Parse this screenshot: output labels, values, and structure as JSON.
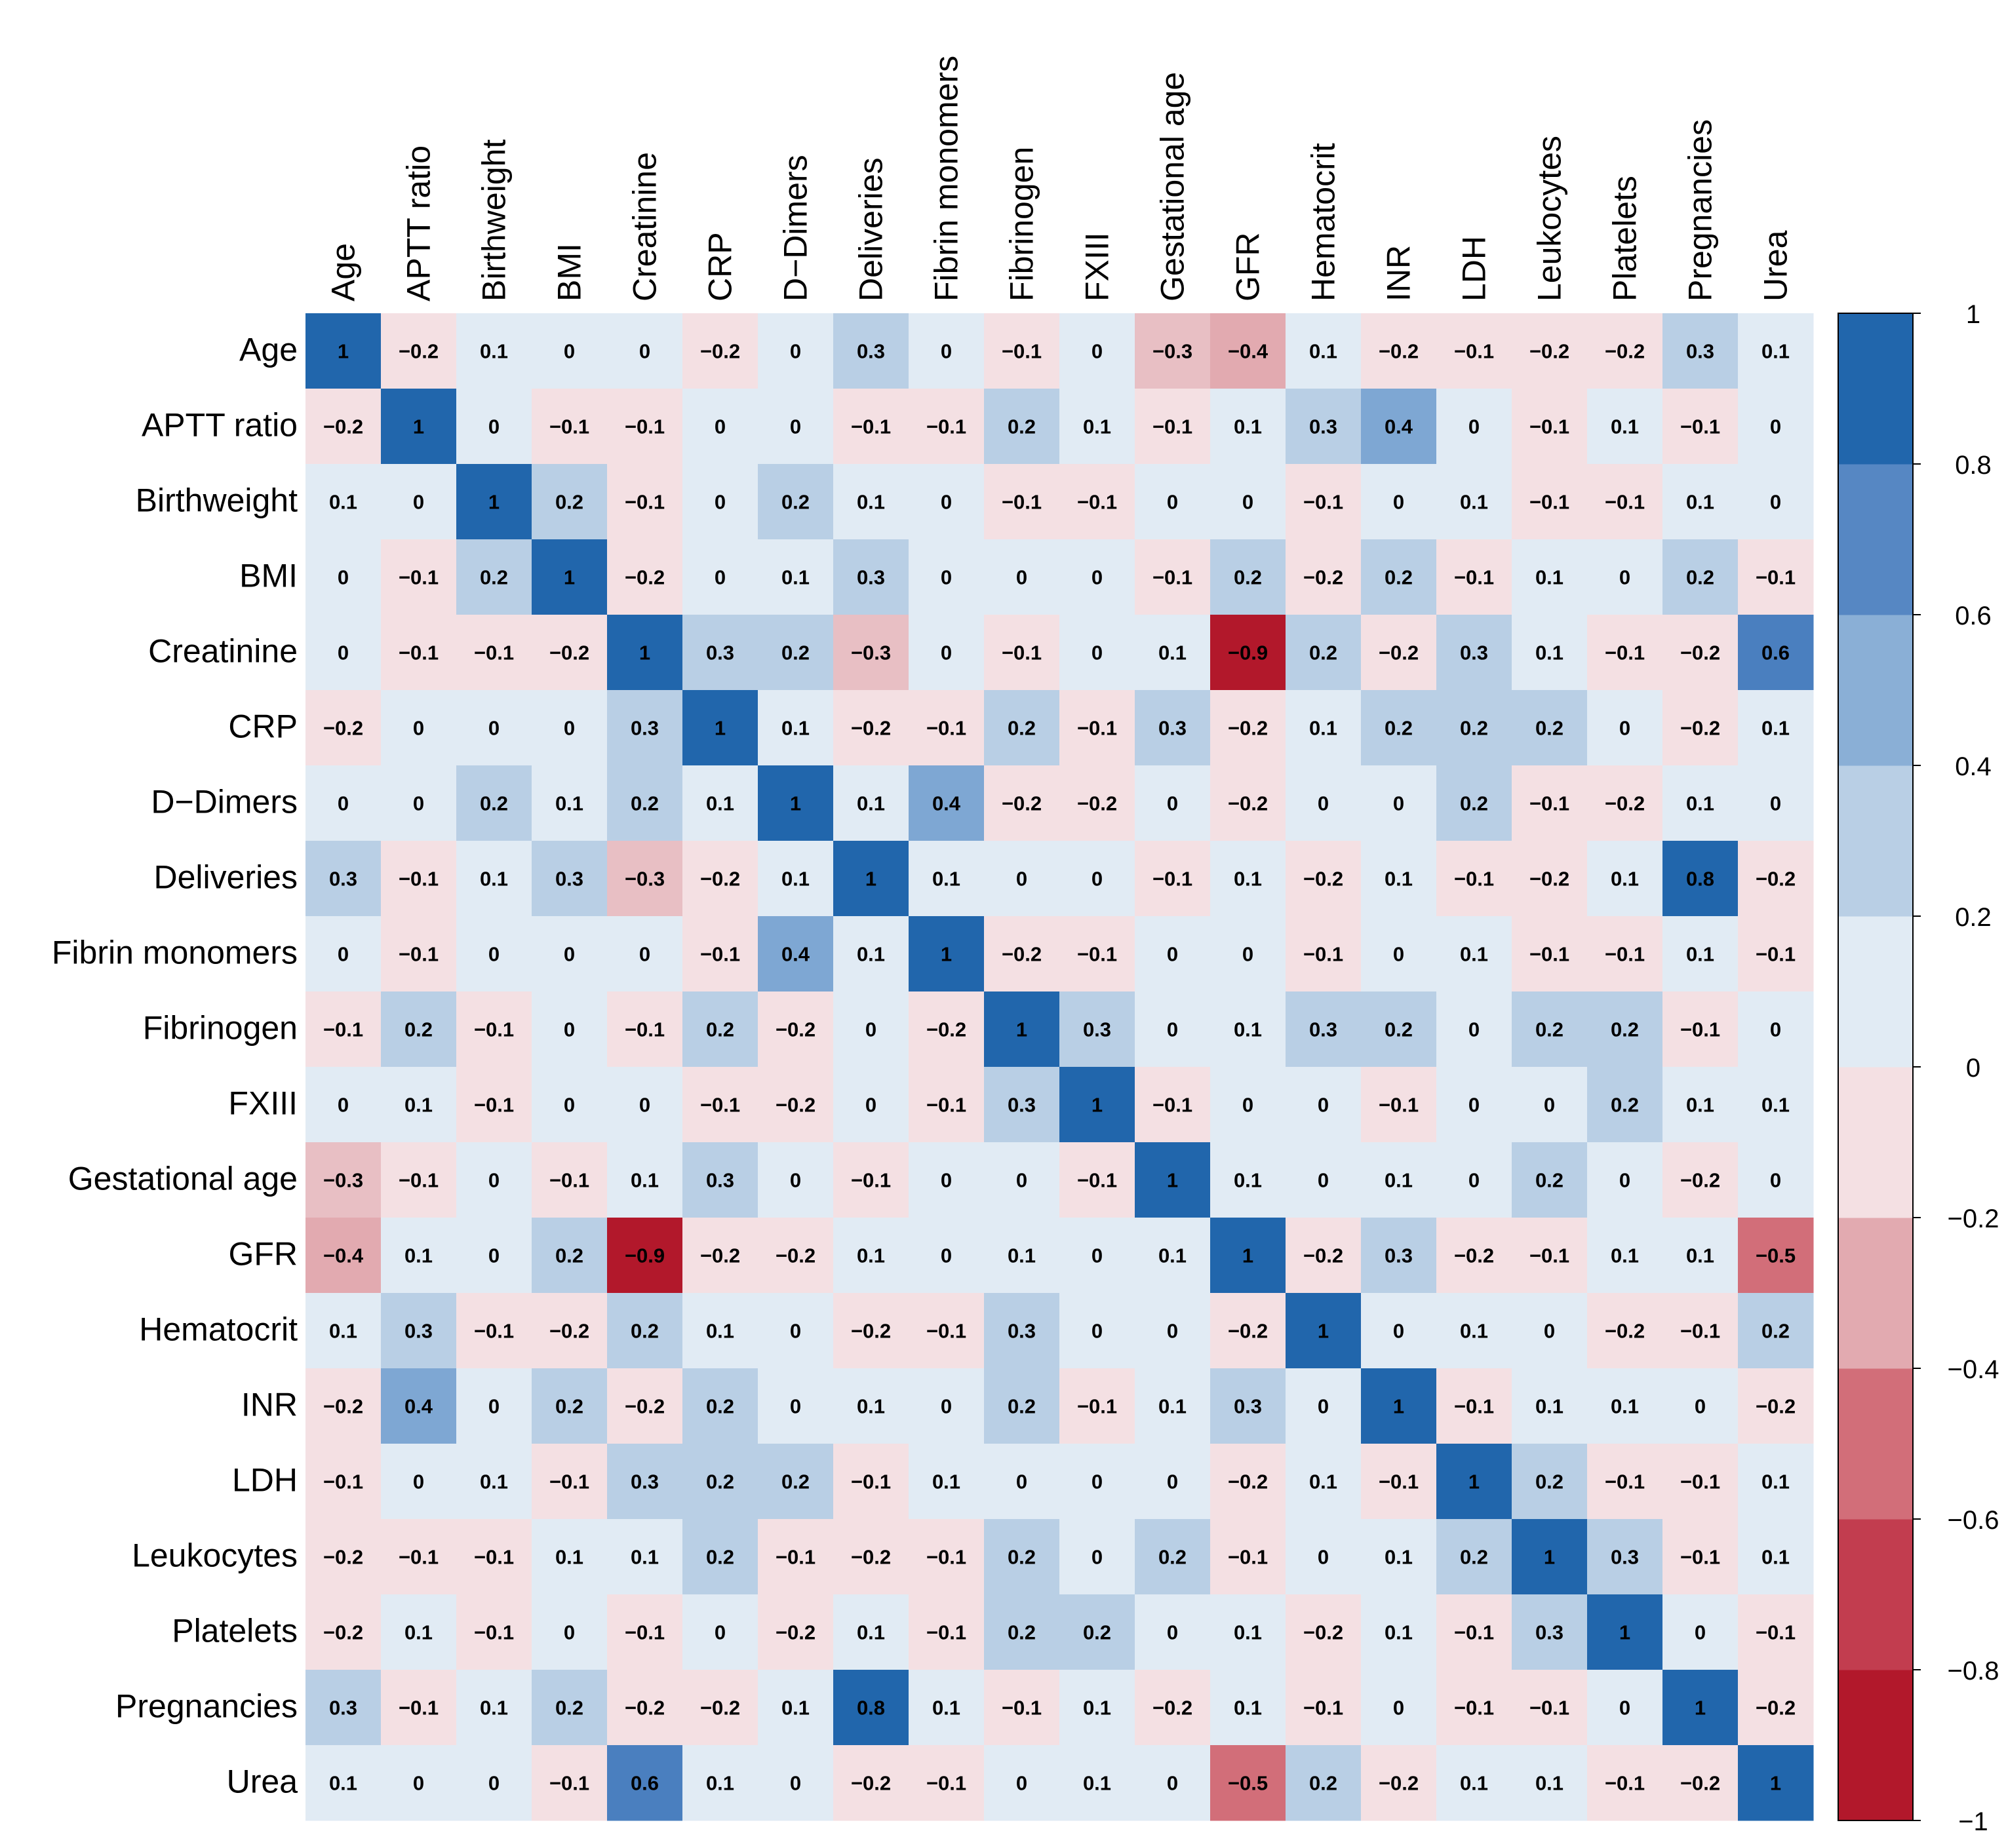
{
  "chart_data": {
    "type": "heatmap",
    "title": "",
    "variables": [
      "Age",
      "APTT ratio",
      "Birthweight",
      "BMI",
      "Creatinine",
      "CRP",
      "D−Dimers",
      "Deliveries",
      "Fibrin monomers",
      "Fibrinogen",
      "FXIII",
      "Gestational age",
      "GFR",
      "Hematocrit",
      "INR",
      "LDH",
      "Leukocytes",
      "Platelets",
      "Pregnancies",
      "Urea"
    ],
    "values": [
      [
        "1",
        "−0.2",
        "0.1",
        "0",
        "0",
        "−0.2",
        "0",
        "0.3",
        "0",
        "−0.1",
        "0",
        "−0.3",
        "−0.4",
        "0.1",
        "−0.2",
        "−0.1",
        "−0.2",
        "−0.2",
        "0.3",
        "0.1"
      ],
      [
        "−0.2",
        "1",
        "0",
        "−0.1",
        "−0.1",
        "0",
        "0",
        "−0.1",
        "−0.1",
        "0.2",
        "0.1",
        "−0.1",
        "0.1",
        "0.3",
        "0.4",
        "0",
        "−0.1",
        "0.1",
        "−0.1",
        "0"
      ],
      [
        "0.1",
        "0",
        "1",
        "0.2",
        "−0.1",
        "0",
        "0.2",
        "0.1",
        "0",
        "−0.1",
        "−0.1",
        "0",
        "0",
        "−0.1",
        "0",
        "0.1",
        "−0.1",
        "−0.1",
        "0.1",
        "0"
      ],
      [
        "0",
        "−0.1",
        "0.2",
        "1",
        "−0.2",
        "0",
        "0.1",
        "0.3",
        "0",
        "0",
        "0",
        "−0.1",
        "0.2",
        "−0.2",
        "0.2",
        "−0.1",
        "0.1",
        "0",
        "0.2",
        "−0.1"
      ],
      [
        "0",
        "−0.1",
        "−0.1",
        "−0.2",
        "1",
        "0.3",
        "0.2",
        "−0.3",
        "0",
        "−0.1",
        "0",
        "0.1",
        "−0.9",
        "0.2",
        "−0.2",
        "0.3",
        "0.1",
        "−0.1",
        "−0.2",
        "0.6"
      ],
      [
        "−0.2",
        "0",
        "0",
        "0",
        "0.3",
        "1",
        "0.1",
        "−0.2",
        "−0.1",
        "0.2",
        "−0.1",
        "0.3",
        "−0.2",
        "0.1",
        "0.2",
        "0.2",
        "0.2",
        "0",
        "−0.2",
        "0.1"
      ],
      [
        "0",
        "0",
        "0.2",
        "0.1",
        "0.2",
        "0.1",
        "1",
        "0.1",
        "0.4",
        "−0.2",
        "−0.2",
        "0",
        "−0.2",
        "0",
        "0",
        "0.2",
        "−0.1",
        "−0.2",
        "0.1",
        "0"
      ],
      [
        "0.3",
        "−0.1",
        "0.1",
        "0.3",
        "−0.3",
        "−0.2",
        "0.1",
        "1",
        "0.1",
        "0",
        "0",
        "−0.1",
        "0.1",
        "−0.2",
        "0.1",
        "−0.1",
        "−0.2",
        "0.1",
        "0.8",
        "−0.2"
      ],
      [
        "0",
        "−0.1",
        "0",
        "0",
        "0",
        "−0.1",
        "0.4",
        "0.1",
        "1",
        "−0.2",
        "−0.1",
        "0",
        "0",
        "−0.1",
        "0",
        "0.1",
        "−0.1",
        "−0.1",
        "0.1",
        "−0.1"
      ],
      [
        "−0.1",
        "0.2",
        "−0.1",
        "0",
        "−0.1",
        "0.2",
        "−0.2",
        "0",
        "−0.2",
        "1",
        "0.3",
        "0",
        "0.1",
        "0.3",
        "0.2",
        "0",
        "0.2",
        "0.2",
        "−0.1",
        "0"
      ],
      [
        "0",
        "0.1",
        "−0.1",
        "0",
        "0",
        "−0.1",
        "−0.2",
        "0",
        "−0.1",
        "0.3",
        "1",
        "−0.1",
        "0",
        "0",
        "−0.1",
        "0",
        "0",
        "0.2",
        "0.1",
        "0.1"
      ],
      [
        "−0.3",
        "−0.1",
        "0",
        "−0.1",
        "0.1",
        "0.3",
        "0",
        "−0.1",
        "0",
        "0",
        "−0.1",
        "1",
        "0.1",
        "0",
        "0.1",
        "0",
        "0.2",
        "0",
        "−0.2",
        "0"
      ],
      [
        "−0.4",
        "0.1",
        "0",
        "0.2",
        "−0.9",
        "−0.2",
        "−0.2",
        "0.1",
        "0",
        "0.1",
        "0",
        "0.1",
        "1",
        "−0.2",
        "0.3",
        "−0.2",
        "−0.1",
        "0.1",
        "0.1",
        "−0.5"
      ],
      [
        "0.1",
        "0.3",
        "−0.1",
        "−0.2",
        "0.2",
        "0.1",
        "0",
        "−0.2",
        "−0.1",
        "0.3",
        "0",
        "0",
        "−0.2",
        "1",
        "0",
        "0.1",
        "0",
        "−0.2",
        "−0.1",
        "0.2"
      ],
      [
        "−0.2",
        "0.4",
        "0",
        "0.2",
        "−0.2",
        "0.2",
        "0",
        "0.1",
        "0",
        "0.2",
        "−0.1",
        "0.1",
        "0.3",
        "0",
        "1",
        "−0.1",
        "0.1",
        "0.1",
        "0",
        "−0.2"
      ],
      [
        "−0.1",
        "0",
        "0.1",
        "−0.1",
        "0.3",
        "0.2",
        "0.2",
        "−0.1",
        "0.1",
        "0",
        "0",
        "0",
        "−0.2",
        "0.1",
        "−0.1",
        "1",
        "0.2",
        "−0.1",
        "−0.1",
        "0.1"
      ],
      [
        "−0.2",
        "−0.1",
        "−0.1",
        "0.1",
        "0.1",
        "0.2",
        "−0.1",
        "−0.2",
        "−0.1",
        "0.2",
        "0",
        "0.2",
        "−0.1",
        "0",
        "0.1",
        "0.2",
        "1",
        "0.3",
        "−0.1",
        "0.1"
      ],
      [
        "−0.2",
        "0.1",
        "−0.1",
        "0",
        "−0.1",
        "0",
        "−0.2",
        "0.1",
        "−0.1",
        "0.2",
        "0.2",
        "0",
        "0.1",
        "−0.2",
        "0.1",
        "−0.1",
        "0.3",
        "1",
        "0",
        "−0.1"
      ],
      [
        "0.3",
        "−0.1",
        "0.1",
        "0.2",
        "−0.2",
        "−0.2",
        "0.1",
        "0.8",
        "0.1",
        "−0.1",
        "0.1",
        "−0.2",
        "0.1",
        "−0.1",
        "0",
        "−0.1",
        "−0.1",
        "0",
        "1",
        "−0.2"
      ],
      [
        "0.1",
        "0",
        "0",
        "−0.1",
        "0.6",
        "0.1",
        "0",
        "−0.2",
        "−0.1",
        "0",
        "0.1",
        "0",
        "−0.5",
        "0.2",
        "−0.2",
        "0.1",
        "0.1",
        "−0.1",
        "−0.2",
        "1"
      ]
    ],
    "colorbar": {
      "range": [
        -1,
        1
      ],
      "bin_edges": [
        -1,
        -0.8,
        -0.6,
        -0.4,
        -0.2,
        0,
        0.2,
        0.4,
        0.6,
        0.8,
        1
      ],
      "bin_colors": [
        "#b2182b",
        "#c23d4f",
        "#d26e79",
        "#e2aab0",
        "#f4e0e3",
        "#e1ebf4",
        "#b9cfe5",
        "#8aafd6",
        "#5687c3",
        "#2166ac"
      ],
      "tick_values": [
        1,
        0.8,
        0.6,
        0.4,
        0.2,
        0,
        -0.2,
        -0.4,
        -0.6,
        -0.8,
        -1
      ],
      "tick_labels": [
        "1",
        "0.8",
        "0.6",
        "0.4",
        "0.2",
        "0",
        "−0.2",
        "−0.4",
        "−0.6",
        "−0.8",
        "−1"
      ]
    },
    "legend_position": "right"
  }
}
